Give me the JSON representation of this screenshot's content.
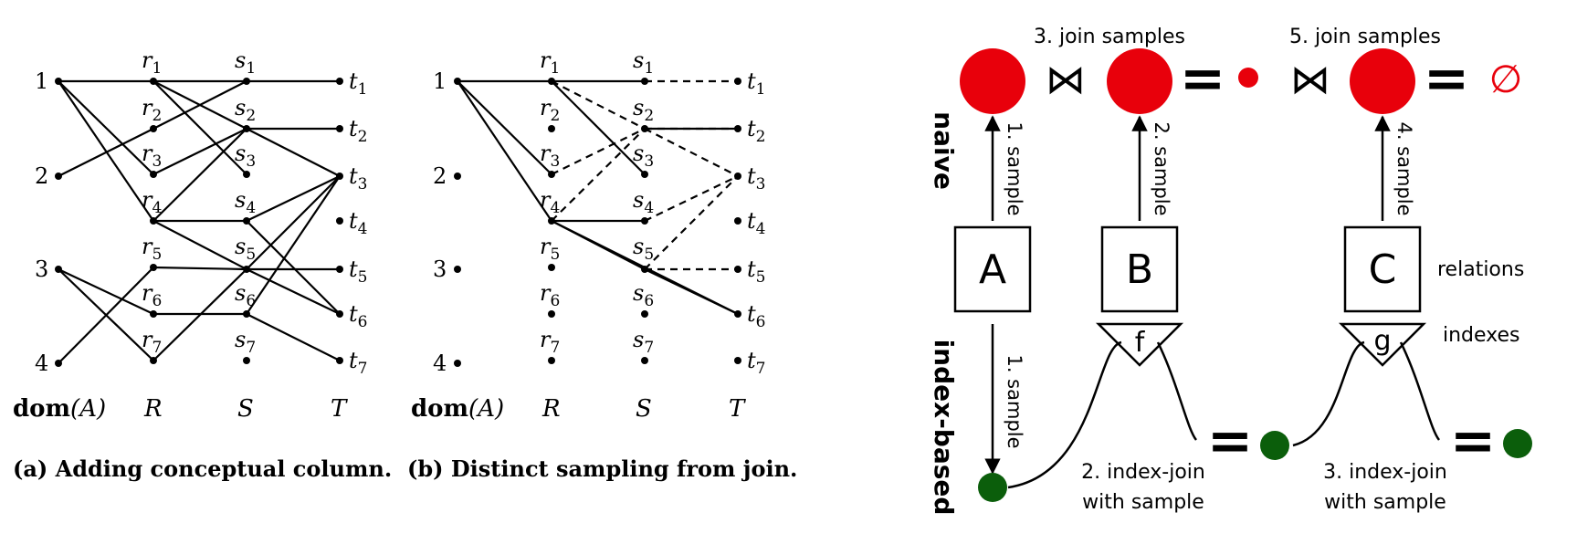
{
  "panel_a": {
    "caption": "(a) Adding conceptual column.",
    "dom_labels": [
      "1",
      "2",
      "3",
      "4"
    ],
    "r_labels": [
      "r1",
      "r2",
      "r3",
      "r4",
      "r5",
      "r6",
      "r7"
    ],
    "s_labels": [
      "s1",
      "s2",
      "s3",
      "s4",
      "s5",
      "s6",
      "s7"
    ],
    "t_labels": [
      "t1",
      "t2",
      "t3",
      "t4",
      "t5",
      "t6",
      "t7"
    ],
    "col_dom": "dom",
    "col_dom_arg": "(A)",
    "col_r": "R",
    "col_s": "S",
    "col_t": "T"
  },
  "panel_b": {
    "caption": "(b) Distinct sampling from join.",
    "dom_labels": [
      "1",
      "2",
      "3",
      "4"
    ],
    "r_labels": [
      "r1",
      "r2",
      "r3",
      "r4",
      "r5",
      "r6",
      "r7"
    ],
    "s_labels": [
      "s1",
      "s2",
      "s3",
      "s4",
      "s5",
      "s6",
      "s7"
    ],
    "t_labels": [
      "t1",
      "t2",
      "t3",
      "t4",
      "t5",
      "t6",
      "t7"
    ],
    "col_dom": "dom",
    "col_dom_arg": "(A)",
    "col_r": "R",
    "col_s": "S",
    "col_t": "T"
  },
  "panel_c": {
    "row_naive": "naive",
    "row_index": "index-based",
    "boxes": [
      "A",
      "B",
      "C"
    ],
    "index_symbols": [
      "f",
      "g"
    ],
    "label_relations": "relations",
    "label_indexes": "indexes",
    "join_samples_3": "3. join samples",
    "join_samples_5": "5. join samples",
    "sample_1_up": "1. sample",
    "sample_2": "2. sample",
    "sample_4": "4. sample",
    "sample_1_down": "1. sample",
    "index_join_2_line1": "2. index-join",
    "index_join_2_line2": "with sample",
    "index_join_3_line1": "3. index-join",
    "index_join_3_line2": "with sample",
    "join_symbol": "⋈",
    "equals_symbol": "=",
    "empty_symbol": "∅",
    "colors": {
      "red": "#e8000b",
      "green": "#0b5e0b",
      "black": "#000000"
    }
  }
}
